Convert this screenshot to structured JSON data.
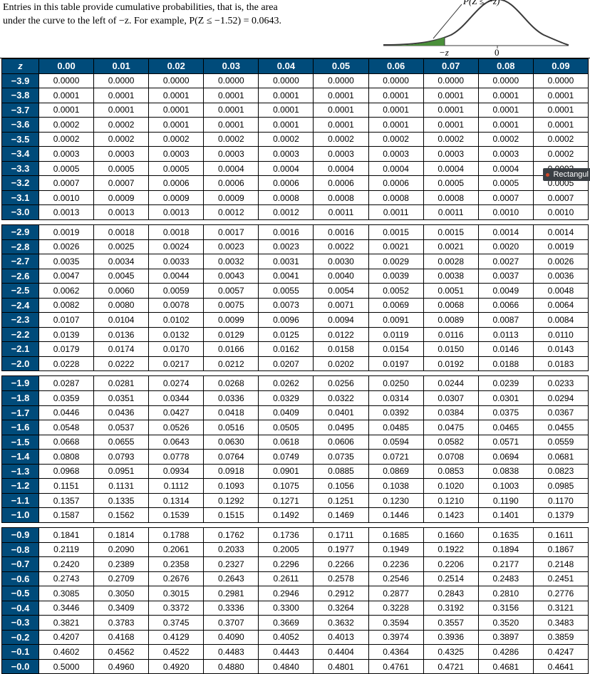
{
  "intro_line1": "Entries in this table provide cumulative probabilities, that is, the area",
  "intro_line2": "under the curve to the left of −z. For example, P(Z ≤ −1.52) = 0.0643.",
  "diagram": {
    "label_top": "P(Z ≤ −z)",
    "label_minus_z": "−z",
    "label_zero": "0",
    "fill_color": "#4a8f3a",
    "curve_color": "#3b3b3b",
    "axis_color": "#3b3b3b"
  },
  "tooltip": "Rectangul",
  "header_bg": "#004b7a",
  "columns": [
    "z",
    "0.00",
    "0.01",
    "0.02",
    "0.03",
    "0.04",
    "0.05",
    "0.06",
    "0.07",
    "0.08",
    "0.09"
  ],
  "blocks": [
    [
      [
        "−3.9",
        "0.0000",
        "0.0000",
        "0.0000",
        "0.0000",
        "0.0000",
        "0.0000",
        "0.0000",
        "0.0000",
        "0.0000",
        "0.0000"
      ],
      [
        "−3.8",
        "0.0001",
        "0.0001",
        "0.0001",
        "0.0001",
        "0.0001",
        "0.0001",
        "0.0001",
        "0.0001",
        "0.0001",
        "0.0001"
      ],
      [
        "−3.7",
        "0.0001",
        "0.0001",
        "0.0001",
        "0.0001",
        "0.0001",
        "0.0001",
        "0.0001",
        "0.0001",
        "0.0001",
        "0.0001"
      ],
      [
        "−3.6",
        "0.0002",
        "0.0002",
        "0.0001",
        "0.0001",
        "0.0001",
        "0.0001",
        "0.0001",
        "0.0001",
        "0.0001",
        "0.0001"
      ],
      [
        "−3.5",
        "0.0002",
        "0.0002",
        "0.0002",
        "0.0002",
        "0.0002",
        "0.0002",
        "0.0002",
        "0.0002",
        "0.0002",
        "0.0002"
      ],
      [
        "−3.4",
        "0.0003",
        "0.0003",
        "0.0003",
        "0.0003",
        "0.0003",
        "0.0003",
        "0.0003",
        "0.0003",
        "0.0003",
        "0.0002"
      ],
      [
        "−3.3",
        "0.0005",
        "0.0005",
        "0.0005",
        "0.0004",
        "0.0004",
        "0.0004",
        "0.0004",
        "0.0004",
        "0.0004",
        "0.0003"
      ],
      [
        "−3.2",
        "0.0007",
        "0.0007",
        "0.0006",
        "0.0006",
        "0.0006",
        "0.0006",
        "0.0006",
        "0.0005",
        "0.0005",
        "0.0005"
      ],
      [
        "−3.1",
        "0.0010",
        "0.0009",
        "0.0009",
        "0.0009",
        "0.0008",
        "0.0008",
        "0.0008",
        "0.0008",
        "0.0007",
        "0.0007"
      ],
      [
        "−3.0",
        "0.0013",
        "0.0013",
        "0.0013",
        "0.0012",
        "0.0012",
        "0.0011",
        "0.0011",
        "0.0011",
        "0.0010",
        "0.0010"
      ]
    ],
    [
      [
        "−2.9",
        "0.0019",
        "0.0018",
        "0.0018",
        "0.0017",
        "0.0016",
        "0.0016",
        "0.0015",
        "0.0015",
        "0.0014",
        "0.0014"
      ],
      [
        "−2.8",
        "0.0026",
        "0.0025",
        "0.0024",
        "0.0023",
        "0.0023",
        "0.0022",
        "0.0021",
        "0.0021",
        "0.0020",
        "0.0019"
      ],
      [
        "−2.7",
        "0.0035",
        "0.0034",
        "0.0033",
        "0.0032",
        "0.0031",
        "0.0030",
        "0.0029",
        "0.0028",
        "0.0027",
        "0.0026"
      ],
      [
        "−2.6",
        "0.0047",
        "0.0045",
        "0.0044",
        "0.0043",
        "0.0041",
        "0.0040",
        "0.0039",
        "0.0038",
        "0.0037",
        "0.0036"
      ],
      [
        "−2.5",
        "0.0062",
        "0.0060",
        "0.0059",
        "0.0057",
        "0.0055",
        "0.0054",
        "0.0052",
        "0.0051",
        "0.0049",
        "0.0048"
      ],
      [
        "−2.4",
        "0.0082",
        "0.0080",
        "0.0078",
        "0.0075",
        "0.0073",
        "0.0071",
        "0.0069",
        "0.0068",
        "0.0066",
        "0.0064"
      ],
      [
        "−2.3",
        "0.0107",
        "0.0104",
        "0.0102",
        "0.0099",
        "0.0096",
        "0.0094",
        "0.0091",
        "0.0089",
        "0.0087",
        "0.0084"
      ],
      [
        "−2.2",
        "0.0139",
        "0.0136",
        "0.0132",
        "0.0129",
        "0.0125",
        "0.0122",
        "0.0119",
        "0.0116",
        "0.0113",
        "0.0110"
      ],
      [
        "−2.1",
        "0.0179",
        "0.0174",
        "0.0170",
        "0.0166",
        "0.0162",
        "0.0158",
        "0.0154",
        "0.0150",
        "0.0146",
        "0.0143"
      ],
      [
        "−2.0",
        "0.0228",
        "0.0222",
        "0.0217",
        "0.0212",
        "0.0207",
        "0.0202",
        "0.0197",
        "0.0192",
        "0.0188",
        "0.0183"
      ]
    ],
    [
      [
        "−1.9",
        "0.0287",
        "0.0281",
        "0.0274",
        "0.0268",
        "0.0262",
        "0.0256",
        "0.0250",
        "0.0244",
        "0.0239",
        "0.0233"
      ],
      [
        "−1.8",
        "0.0359",
        "0.0351",
        "0.0344",
        "0.0336",
        "0.0329",
        "0.0322",
        "0.0314",
        "0.0307",
        "0.0301",
        "0.0294"
      ],
      [
        "−1.7",
        "0.0446",
        "0.0436",
        "0.0427",
        "0.0418",
        "0.0409",
        "0.0401",
        "0.0392",
        "0.0384",
        "0.0375",
        "0.0367"
      ],
      [
        "−1.6",
        "0.0548",
        "0.0537",
        "0.0526",
        "0.0516",
        "0.0505",
        "0.0495",
        "0.0485",
        "0.0475",
        "0.0465",
        "0.0455"
      ],
      [
        "−1.5",
        "0.0668",
        "0.0655",
        "0.0643",
        "0.0630",
        "0.0618",
        "0.0606",
        "0.0594",
        "0.0582",
        "0.0571",
        "0.0559"
      ],
      [
        "−1.4",
        "0.0808",
        "0.0793",
        "0.0778",
        "0.0764",
        "0.0749",
        "0.0735",
        "0.0721",
        "0.0708",
        "0.0694",
        "0.0681"
      ],
      [
        "−1.3",
        "0.0968",
        "0.0951",
        "0.0934",
        "0.0918",
        "0.0901",
        "0.0885",
        "0.0869",
        "0.0853",
        "0.0838",
        "0.0823"
      ],
      [
        "−1.2",
        "0.1151",
        "0.1131",
        "0.1112",
        "0.1093",
        "0.1075",
        "0.1056",
        "0.1038",
        "0.1020",
        "0.1003",
        "0.0985"
      ],
      [
        "−1.1",
        "0.1357",
        "0.1335",
        "0.1314",
        "0.1292",
        "0.1271",
        "0.1251",
        "0.1230",
        "0.1210",
        "0.1190",
        "0.1170"
      ],
      [
        "−1.0",
        "0.1587",
        "0.1562",
        "0.1539",
        "0.1515",
        "0.1492",
        "0.1469",
        "0.1446",
        "0.1423",
        "0.1401",
        "0.1379"
      ]
    ],
    [
      [
        "−0.9",
        "0.1841",
        "0.1814",
        "0.1788",
        "0.1762",
        "0.1736",
        "0.1711",
        "0.1685",
        "0.1660",
        "0.1635",
        "0.1611"
      ],
      [
        "−0.8",
        "0.2119",
        "0.2090",
        "0.2061",
        "0.2033",
        "0.2005",
        "0.1977",
        "0.1949",
        "0.1922",
        "0.1894",
        "0.1867"
      ],
      [
        "−0.7",
        "0.2420",
        "0.2389",
        "0.2358",
        "0.2327",
        "0.2296",
        "0.2266",
        "0.2236",
        "0.2206",
        "0.2177",
        "0.2148"
      ],
      [
        "−0.6",
        "0.2743",
        "0.2709",
        "0.2676",
        "0.2643",
        "0.2611",
        "0.2578",
        "0.2546",
        "0.2514",
        "0.2483",
        "0.2451"
      ],
      [
        "−0.5",
        "0.3085",
        "0.3050",
        "0.3015",
        "0.2981",
        "0.2946",
        "0.2912",
        "0.2877",
        "0.2843",
        "0.2810",
        "0.2776"
      ],
      [
        "−0.4",
        "0.3446",
        "0.3409",
        "0.3372",
        "0.3336",
        "0.3300",
        "0.3264",
        "0.3228",
        "0.3192",
        "0.3156",
        "0.3121"
      ],
      [
        "−0.3",
        "0.3821",
        "0.3783",
        "0.3745",
        "0.3707",
        "0.3669",
        "0.3632",
        "0.3594",
        "0.3557",
        "0.3520",
        "0.3483"
      ],
      [
        "−0.2",
        "0.4207",
        "0.4168",
        "0.4129",
        "0.4090",
        "0.4052",
        "0.4013",
        "0.3974",
        "0.3936",
        "0.3897",
        "0.3859"
      ],
      [
        "−0.1",
        "0.4602",
        "0.4562",
        "0.4522",
        "0.4483",
        "0.4443",
        "0.4404",
        "0.4364",
        "0.4325",
        "0.4286",
        "0.4247"
      ],
      [
        "−0.0",
        "0.5000",
        "0.4960",
        "0.4920",
        "0.4880",
        "0.4840",
        "0.4801",
        "0.4761",
        "0.4721",
        "0.4681",
        "0.4641"
      ]
    ]
  ]
}
